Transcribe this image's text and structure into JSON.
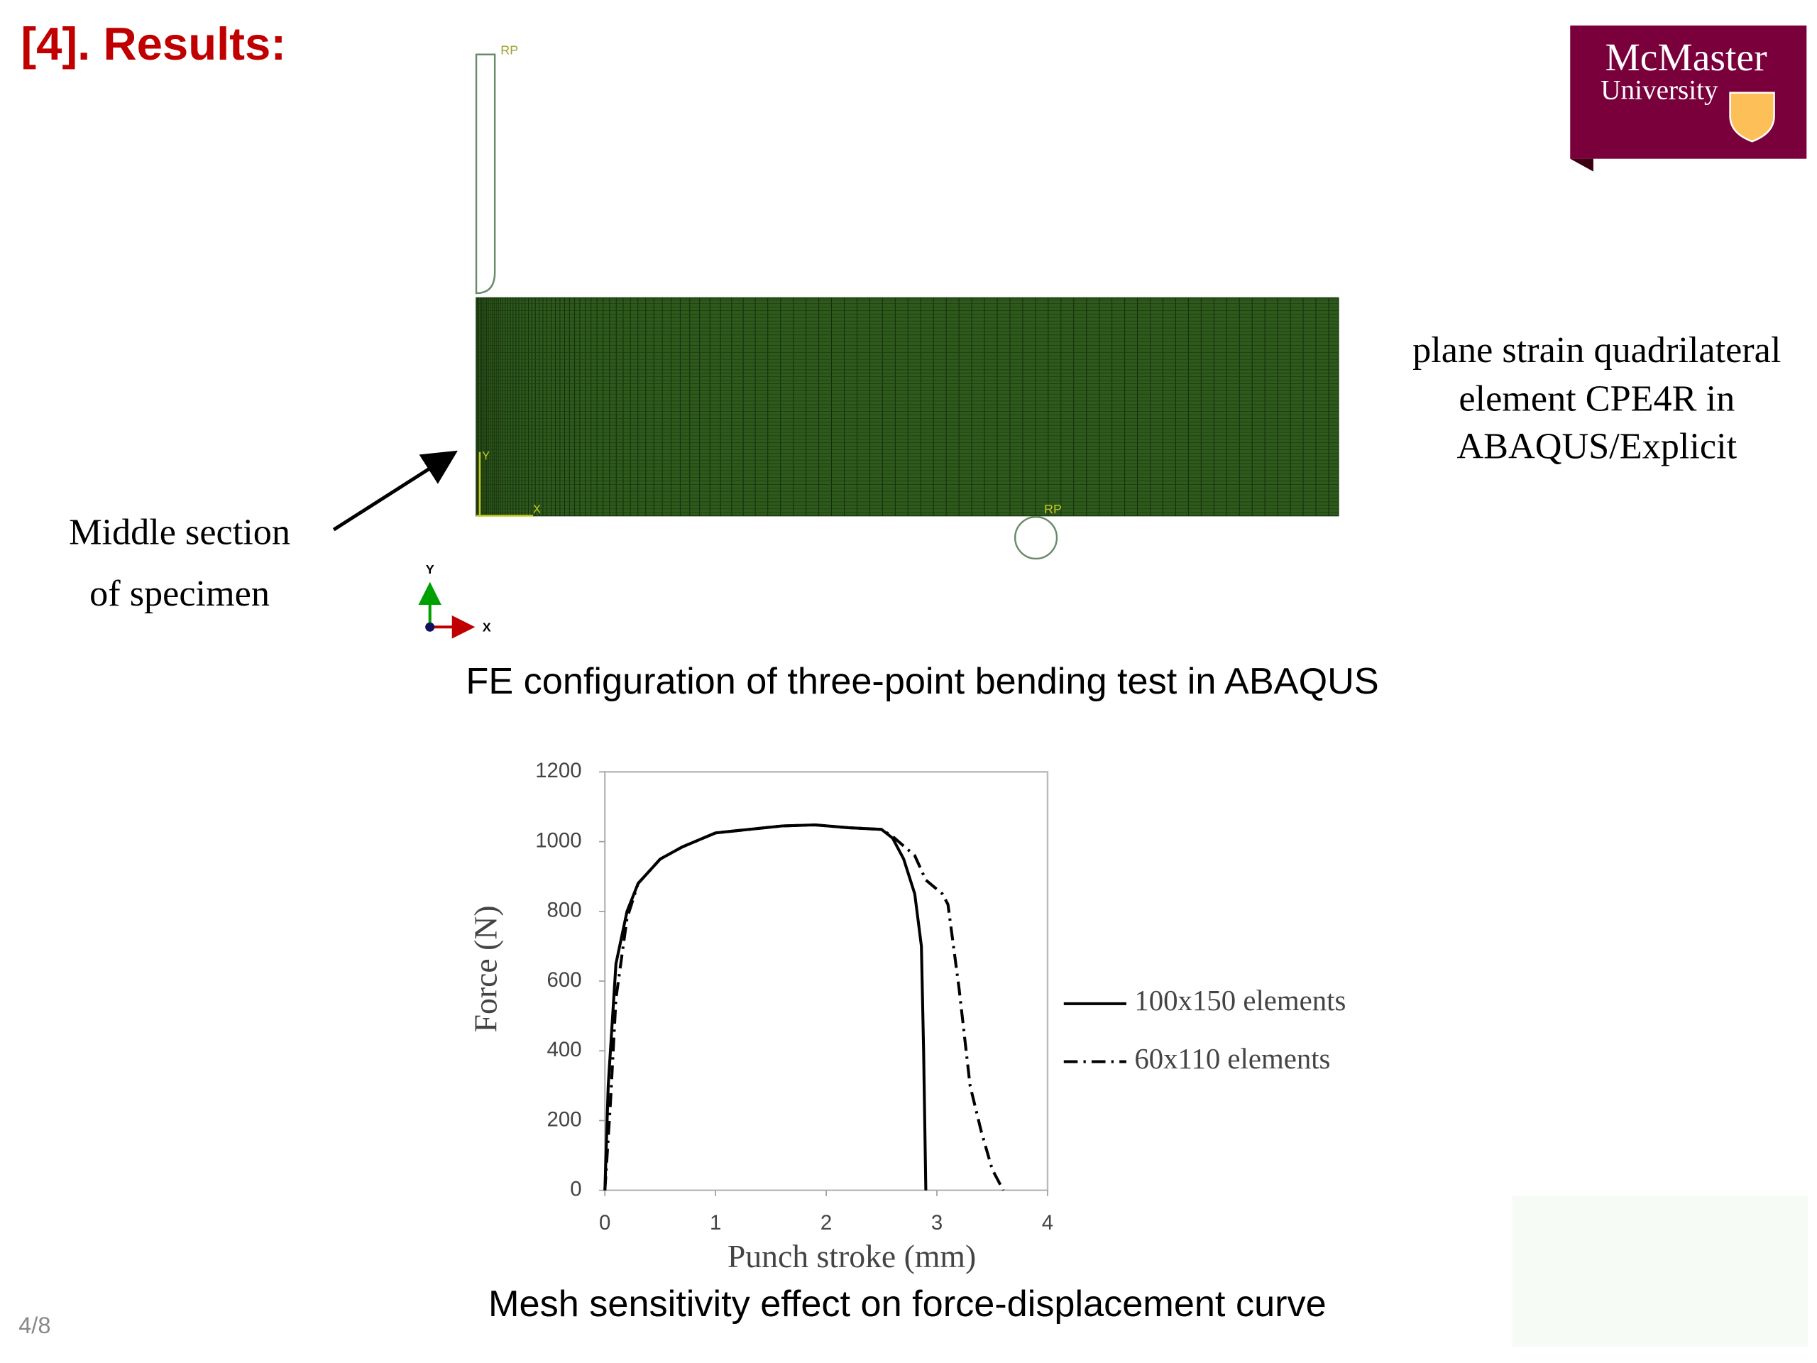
{
  "header": {
    "title": "[4]. Results:",
    "page_number": "4/8"
  },
  "logo": {
    "line1": "McMaster",
    "line2": "University"
  },
  "fe_figure": {
    "rp_top": "RP",
    "rp_bottom": "RP",
    "mesh_y": "Y",
    "mesh_x": "X",
    "pointer_lines": [
      "Middle section",
      "of specimen"
    ],
    "element_lines": [
      "plane strain quadrilateral",
      "element CPE4R in",
      "ABAQUS/Explicit"
    ],
    "triad_y": "Y",
    "triad_x": "X",
    "caption": "FE configuration of three-point bending test in ABAQUS"
  },
  "chart_data": {
    "type": "line",
    "caption": "Mesh sensitivity effect on force-displacement curve",
    "x_label": "Punch stroke (mm)",
    "y_label": "Force (N)",
    "xlim": [
      0,
      4
    ],
    "ylim": [
      0,
      1200
    ],
    "xticks": [
      0,
      1,
      2,
      3,
      4
    ],
    "yticks": [
      0,
      200,
      400,
      600,
      800,
      1000,
      1200
    ],
    "series": [
      {
        "name": "100x150 elements",
        "color": "#000000",
        "dash": "solid",
        "x": [
          0,
          0.03,
          0.1,
          0.2,
          0.3,
          0.5,
          0.7,
          1.0,
          1.3,
          1.6,
          1.9,
          2.2,
          2.5,
          2.6,
          2.7,
          2.8,
          2.86,
          2.88,
          2.9
        ],
        "values": [
          0,
          300,
          650,
          800,
          880,
          950,
          985,
          1025,
          1035,
          1045,
          1048,
          1040,
          1035,
          1010,
          950,
          850,
          700,
          400,
          0
        ]
      },
      {
        "name": "60x110 elements",
        "color": "#000000",
        "dash": "dashdot",
        "x": [
          0,
          0.05,
          0.1,
          0.2,
          0.3,
          0.5,
          0.7,
          1.0,
          1.3,
          1.6,
          1.9,
          2.2,
          2.5,
          2.6,
          2.8,
          2.9,
          3.05,
          3.1,
          3.2,
          3.3,
          3.4,
          3.5,
          3.6
        ],
        "values": [
          0,
          250,
          550,
          780,
          880,
          950,
          985,
          1025,
          1035,
          1045,
          1048,
          1040,
          1035,
          1015,
          960,
          890,
          850,
          820,
          580,
          300,
          170,
          60,
          0
        ]
      }
    ]
  }
}
